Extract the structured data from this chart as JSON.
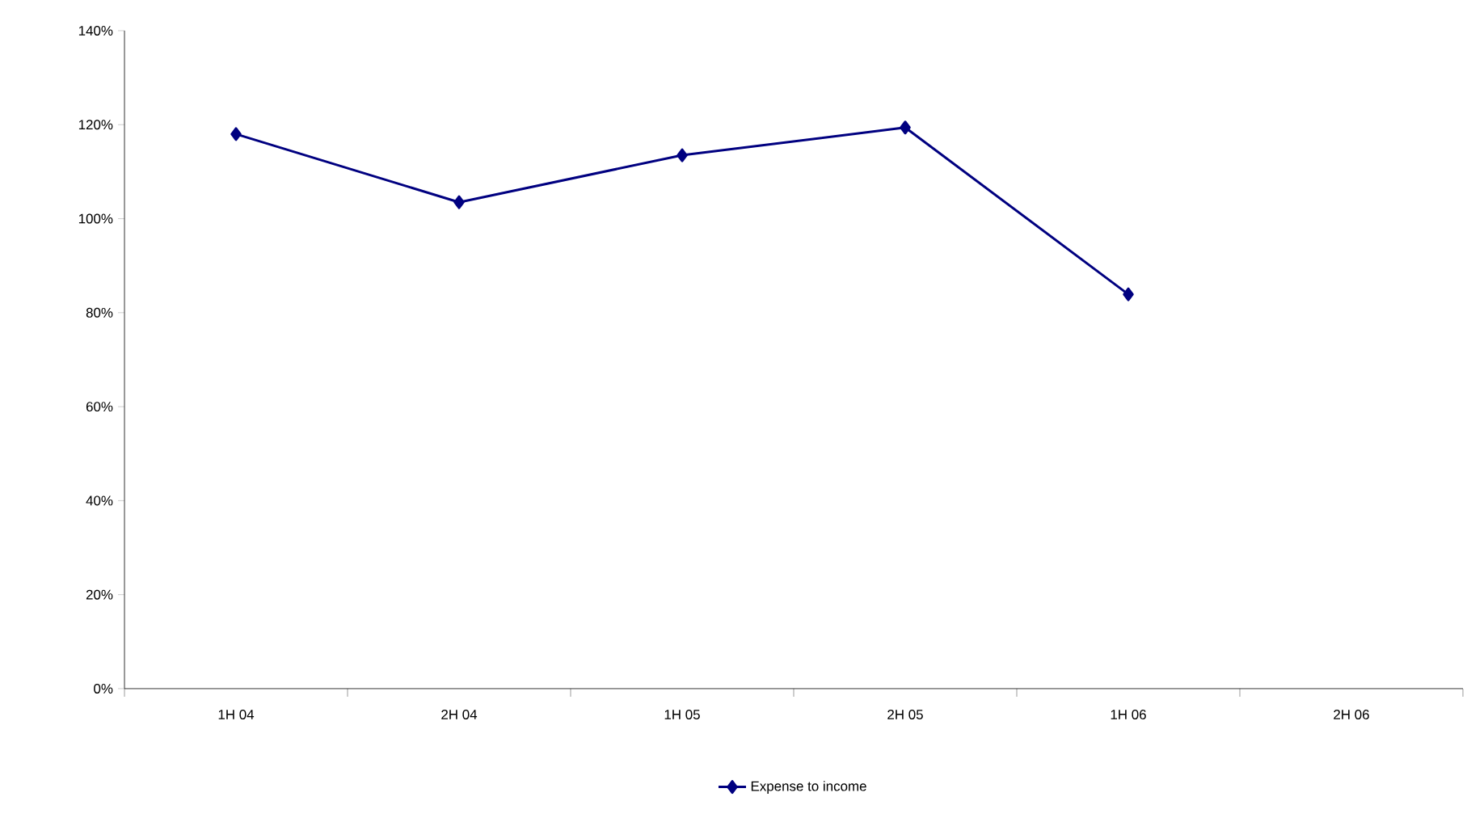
{
  "chart_data": {
    "type": "line",
    "categories": [
      "1H 04",
      "2H 04",
      "1H 05",
      "2H 05",
      "1H 06",
      "2H 06"
    ],
    "series": [
      {
        "name": "Expense to income",
        "color": "#000080",
        "values": [
          118,
          103.5,
          113.5,
          119.4,
          83.9,
          null
        ]
      }
    ],
    "ylim": [
      0,
      140
    ],
    "yticks": [
      {
        "value": 0,
        "label": "0%"
      },
      {
        "value": 20,
        "label": "20%"
      },
      {
        "value": 40,
        "label": "40%"
      },
      {
        "value": 60,
        "label": "60%"
      },
      {
        "value": 80,
        "label": "80%"
      },
      {
        "value": 100,
        "label": "100%"
      },
      {
        "value": 120,
        "label": "120%"
      },
      {
        "value": 140,
        "label": "140%"
      }
    ],
    "grid": false,
    "legend": "bottom",
    "marker": "diamond",
    "line_style": "solid"
  }
}
